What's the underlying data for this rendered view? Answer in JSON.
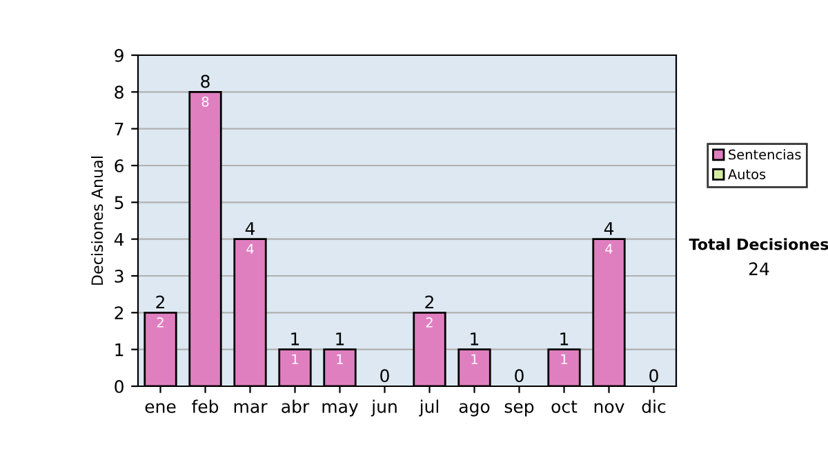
{
  "chart_data": {
    "type": "bar",
    "stacked": true,
    "ylabel": "Decisiones Anual",
    "categories": [
      "ene",
      "feb",
      "mar",
      "abr",
      "may",
      "jun",
      "jul",
      "ago",
      "sep",
      "oct",
      "nov",
      "dic"
    ],
    "series": [
      {
        "name": "Sentencias",
        "color": "#e07fc0",
        "values": [
          2,
          8,
          4,
          1,
          1,
          0,
          2,
          1,
          0,
          1,
          4,
          0
        ],
        "value_labels": [
          "2",
          "8",
          "4",
          "1",
          "1",
          null,
          "2",
          "1",
          null,
          "1",
          "4",
          null
        ]
      },
      {
        "name": "Autos",
        "color": "#d4eca0",
        "values": [
          0,
          0,
          0,
          0,
          0,
          0,
          0,
          0,
          0,
          0,
          0,
          0
        ]
      }
    ],
    "totals": [
      "2",
      "8",
      "4",
      "1",
      "1",
      "0",
      "2",
      "1",
      "0",
      "1",
      "4",
      "0"
    ],
    "ylim": [
      0,
      9
    ],
    "yticks": [
      0,
      1,
      2,
      3,
      4,
      5,
      6,
      7,
      8,
      9
    ],
    "grid": "y",
    "legend": "right",
    "annotations": [
      "Total Decisiones",
      "24"
    ]
  }
}
